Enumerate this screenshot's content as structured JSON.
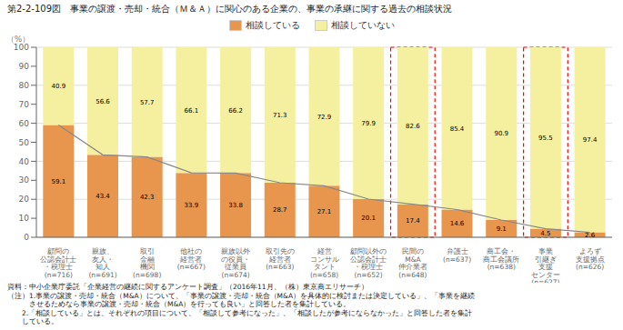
{
  "chart_data": {
    "type": "bar",
    "title": "第2-2-109図　事業の譲渡・売却・統合（Ｍ＆Ａ）に関心のある企業の、事業の承継に関する過去の相談状況",
    "y_label": "（%）",
    "categories": [
      "顧問の\n公認会計士\n・税理士\n(n=716)",
      "親族、\n友人・\n知人\n(n=691)",
      "取引\n金融\n機関\n(n=698)",
      "他社の\n経営者\n(n=667)",
      "親族以外\nの役員・\n従業員\n(n=674)",
      "取引先の\n経営者\n(n=663)",
      "経営\nコンサル\nタント\n(n=658)",
      "顧問以外の\n公認会計士\n・税理士\n(n=652)",
      "民間の\nM&A\n仲介業者\n(n=648)",
      "弁護士\n(n=637)",
      "商工会・\n商工会議所\n(n=638)",
      "事業\n引継ぎ\n支援\nセンター\n(n=627)",
      "よろず\n支援拠点\n(n=626)"
    ],
    "series": [
      {
        "name": "相談している",
        "color": "#E8954E",
        "values": [
          59.1,
          43.4,
          42.3,
          33.9,
          33.8,
          28.7,
          27.1,
          20.1,
          17.4,
          14.6,
          9.1,
          4.5,
          2.6
        ]
      },
      {
        "name": "相談していない",
        "color": "#F5F0A0",
        "values": [
          40.9,
          56.6,
          57.7,
          66.1,
          66.2,
          71.3,
          72.9,
          79.9,
          82.6,
          85.4,
          90.9,
          95.5,
          97.4
        ]
      },
      {
        "type": "line",
        "color": "#888888",
        "values": [
          59.1,
          43.4,
          42.3,
          33.9,
          33.8,
          28.7,
          27.1,
          20.1,
          17.4,
          14.6,
          9.1,
          4.5,
          2.6
        ]
      }
    ],
    "stacked": true,
    "data_labels": true,
    "grid": true,
    "legend": "top",
    "ylim": [
      0,
      100
    ],
    "yticks": [
      0,
      10,
      20,
      30,
      40,
      50,
      60,
      70,
      80,
      90,
      100
    ],
    "annotations": [
      {
        "type": "box",
        "category": "民間の\nM&A\n仲介業者\n(n=648)",
        "color": "red",
        "line_style": "dashed"
      },
      {
        "type": "box",
        "category": "事業\n引継ぎ\n支援\nセンター\n(n=627)",
        "color": "red",
        "line_style": "dashed"
      }
    ],
    "footnotes": [
      "資料：中小企業庁委託「企業経営の継続に関するアンケート調査」（2016年11月、（株）東京商エリサーチ）",
      "（注）1.事業の譲渡・売却・統合（M&A）について、「事業の譲渡・売却・統合（M&A）を具体的に検討または決定している」、「事業を継続",
      "　　　させるためなら事業の譲渡・売却・統合（M&A）を行っても良い」と回答した者を集計している。",
      "　　2.「相談している」とは、それぞれの項目について、「相談して参考になった」、「相談したが参考にならなかった」と回答した者を集計",
      "　　している。"
    ]
  }
}
